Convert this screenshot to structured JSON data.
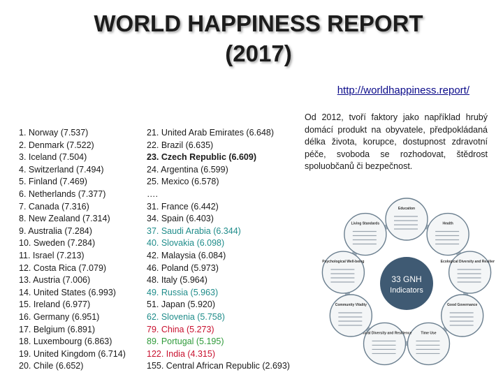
{
  "title_line1": "WORLD HAPPINESS REPORT",
  "title_line2": "(2017)",
  "link": "http://worldhappiness.report/",
  "left_list": [
    "1. Norway (7.537)",
    "2. Denmark (7.522)",
    "3. Iceland (7.504)",
    "4. Switzerland (7.494)",
    "5. Finland (7.469)",
    "6. Netherlands (7.377)",
    "7. Canada (7.316)",
    "8. New Zealand (7.314)",
    "9. Australia (7.284)",
    "10. Sweden (7.284)",
    "11. Israel (7.213)",
    "12. Costa Rica (7.079)",
    "13. Austria (7.006)",
    "14. United States (6.993)",
    "15. Ireland (6.977)",
    "16. Germany (6.951)",
    "17. Belgium (6.891)",
    "18. Luxembourg (6.863)",
    "19. United Kingdom (6.714)",
    "20. Chile (6.652)"
  ],
  "mid_list": [
    {
      "text": "21. United Arab Emirates (6.648)",
      "style": "normal"
    },
    {
      "text": "22. Brazil (6.635)",
      "style": "normal"
    },
    {
      "text": "23. Czech Republic (6.609)",
      "style": "bold"
    },
    {
      "text": "24. Argentina (6.599)",
      "style": "normal"
    },
    {
      "text": "25. Mexico (6.578)",
      "style": "normal"
    },
    {
      "text": "….",
      "style": "normal"
    },
    {
      "text": "31. France (6.442)",
      "style": "normal"
    },
    {
      "text": "34. Spain (6.403)",
      "style": "normal"
    },
    {
      "text": "37. Saudi Arabia (6.344)",
      "style": "teal"
    },
    {
      "text": "40. Slovakia (6.098)",
      "style": "teal"
    },
    {
      "text": "42. Malaysia (6.084)",
      "style": "normal"
    },
    {
      "text": "46. Poland (5.973)",
      "style": "normal"
    },
    {
      "text": "48. Italy (5.964)",
      "style": "normal"
    },
    {
      "text": "49. Russia (5.963)",
      "style": "teal"
    },
    {
      "text": "51. Japan (5.920)",
      "style": "normal"
    },
    {
      "text": "62. Slovenia (5.758)",
      "style": "teal"
    },
    {
      "text": "79. China (5.273)",
      "style": "red"
    },
    {
      "text": "89. Portugal (5.195)",
      "style": "green"
    },
    {
      "text": "122. India (4.315)",
      "style": "red"
    },
    {
      "text": "155. Central African Republic (2.693)",
      "style": "normal"
    }
  ],
  "note": "Od 2012, tvoří faktory jako například hrubý domácí produkt na obyvatele, předpokládaná délka života, korupce, dostupnost zdravotní péče, svoboda se rozhodovat, štědrost spoluobčanů či bezpečnost.",
  "gnh": {
    "center_line1": "33 GNH",
    "center_line2": "Indicators",
    "domains": [
      "Education",
      "Health",
      "Ecological Diversity and Resilience",
      "Good Governance",
      "Time Use",
      "Cultural Diversity and Resilience",
      "Community Vitality",
      "Psychological Well-being",
      "Living Standards"
    ]
  },
  "colors": {
    "teal": "#1f8c8a",
    "red": "#c8102e",
    "green": "#2f9a3a",
    "link": "#0b0b8a",
    "ring": "#6b7f8f",
    "center": "#3f5a73"
  }
}
